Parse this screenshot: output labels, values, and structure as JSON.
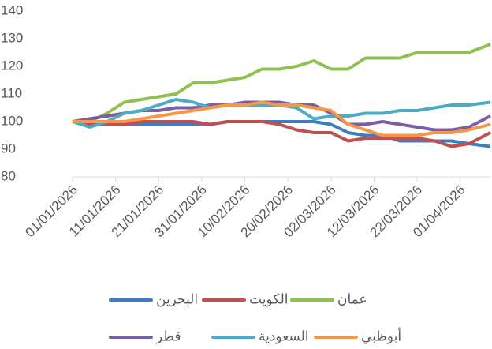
{
  "chart_data": {
    "type": "line",
    "x": [
      "01/01/2026",
      "05/01/2026",
      "09/01/2026",
      "13/01/2026",
      "17/01/2026",
      "21/01/2026",
      "25/01/2026",
      "29/01/2026",
      "02/02/2026",
      "06/02/2026",
      "10/02/2026",
      "14/02/2026",
      "18/02/2026",
      "22/02/2026",
      "26/02/2026",
      "02/03/2026",
      "06/03/2026",
      "10/03/2026",
      "14/03/2026",
      "18/03/2026",
      "22/03/2026",
      "26/03/2026",
      "30/03/2026",
      "03/04/2026",
      "08/04/2026"
    ],
    "series": [
      {
        "name": "البحرين",
        "color": "#3f7cc0",
        "values": [
          100,
          99,
          99,
          99,
          99,
          99,
          99,
          99,
          99,
          100,
          100,
          100,
          100,
          100,
          100,
          99,
          96,
          95,
          95,
          93,
          93,
          93,
          93,
          92,
          91
        ]
      },
      {
        "name": "الكويت",
        "color": "#c0504d",
        "values": [
          100,
          99,
          99,
          99,
          100,
          100,
          100,
          100,
          99,
          100,
          100,
          100,
          99,
          97,
          96,
          96,
          93,
          94,
          94,
          94,
          94,
          93,
          91,
          92,
          96
        ]
      },
      {
        "name": "عمان",
        "color": "#92c050",
        "values": [
          100,
          100,
          103,
          107,
          108,
          109,
          110,
          114,
          114,
          115,
          116,
          119,
          119,
          120,
          122,
          119,
          119,
          123,
          123,
          123,
          125,
          125,
          125,
          125,
          128
        ]
      },
      {
        "name": "قطر",
        "color": "#7b5ea7",
        "values": [
          100,
          101,
          102,
          103,
          104,
          104,
          105,
          105,
          106,
          106,
          107,
          107,
          107,
          106,
          106,
          103,
          99,
          99,
          100,
          99,
          98,
          97,
          97,
          98,
          102
        ]
      },
      {
        "name": "السعودية",
        "color": "#4bacc6",
        "values": [
          100,
          98,
          100,
          103,
          104,
          106,
          108,
          107,
          105,
          106,
          106,
          106,
          106,
          105,
          101,
          102,
          102,
          103,
          103,
          104,
          104,
          105,
          106,
          106,
          107
        ]
      },
      {
        "name": "أبوظبي",
        "color": "#f79646",
        "values": [
          100,
          100,
          100,
          100,
          101,
          102,
          103,
          104,
          105,
          106,
          106,
          107,
          106,
          106,
          105,
          104,
          99,
          97,
          95,
          95,
          95,
          96,
          96,
          97,
          99
        ]
      }
    ],
    "xlim": [
      "01/01/2026",
      "08/04/2026"
    ],
    "xticks": [
      "01/01/2026",
      "11/01/2026",
      "21/01/2026",
      "31/01/2026",
      "10/02/2026",
      "20/02/2026",
      "02/03/2026",
      "12/03/2026",
      "22/03/2026",
      "01/04/2026"
    ],
    "ylim": [
      80,
      140
    ],
    "yticks": [
      80,
      90,
      100,
      110,
      120,
      130,
      140
    ]
  }
}
